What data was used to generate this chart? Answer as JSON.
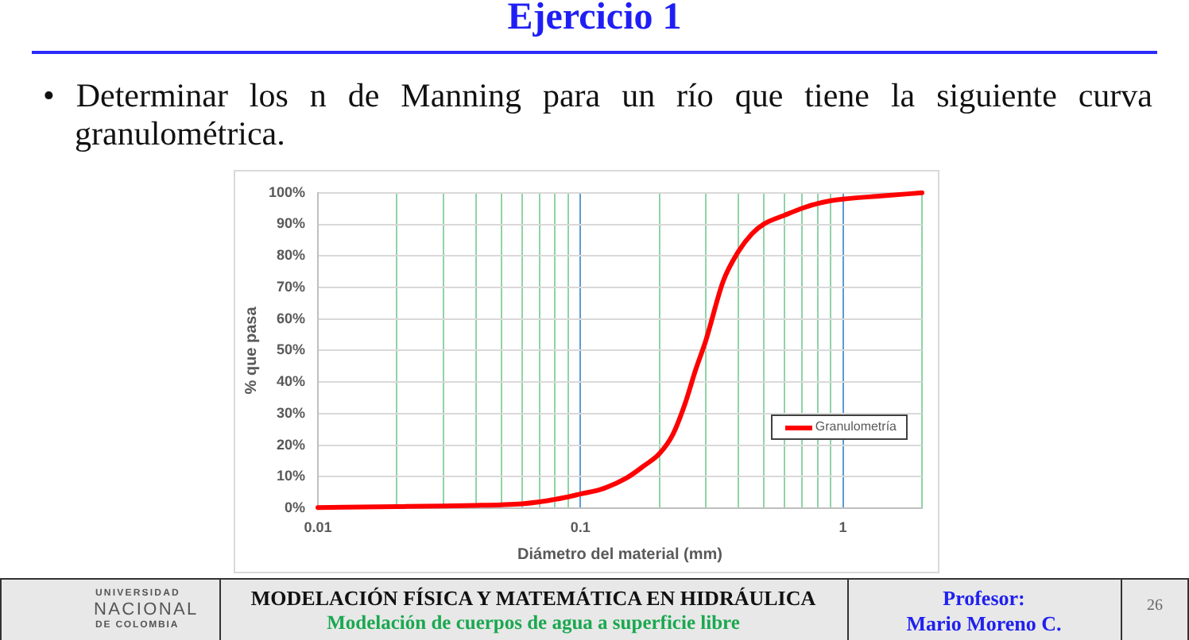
{
  "chart_data": {
    "type": "line",
    "title": "Ejercicio 1",
    "subtitle": "• Determinar los n de Manning para un río que tiene la siguiente curva granulométrica.",
    "xlabel": "Diámetro del material (mm)",
    "ylabel": "% que pasa",
    "x": [
      0.01,
      0.02,
      0.03,
      0.04,
      0.05,
      0.06,
      0.07,
      0.08,
      0.09,
      0.1,
      0.12,
      0.15,
      0.175,
      0.2,
      0.225,
      0.25,
      0.275,
      0.3,
      0.35,
      0.4,
      0.45,
      0.5,
      0.6,
      0.7,
      0.8,
      0.9,
      1,
      1.4,
      2
    ],
    "series": [
      {
        "name": "Granulometría",
        "color": "#ff0000",
        "values": [
          0.2,
          0.5,
          0.7,
          0.9,
          1.1,
          1.4,
          2,
          2.8,
          3.6,
          4.5,
          6,
          9.6,
          13.5,
          17.3,
          23.4,
          33,
          44,
          53,
          72,
          81.4,
          87,
          90.1,
          92.9,
          95.1,
          96.6,
          97.5,
          98,
          99,
          100
        ]
      }
    ],
    "xlim": [
      0.01,
      2
    ],
    "ylim": [
      0,
      100
    ],
    "xticks": [
      0.01,
      {
        "value": 0.02,
        "label": null
      },
      {
        "value": 0.03,
        "label": null
      },
      {
        "value": 0.04,
        "label": null
      },
      {
        "value": 0.05,
        "label": null
      },
      {
        "value": 0.06,
        "label": null
      },
      {
        "value": 0.07,
        "label": null
      },
      {
        "value": 0.08,
        "label": null
      },
      {
        "value": 0.09,
        "label": null
      },
      0.1,
      {
        "value": 0.2,
        "label": null
      },
      {
        "value": 0.3,
        "label": null
      },
      {
        "value": 0.4,
        "label": null
      },
      {
        "value": 0.5,
        "label": null
      },
      {
        "value": 0.6,
        "label": null
      },
      {
        "value": 0.7,
        "label": null
      },
      {
        "value": 0.8,
        "label": null
      },
      {
        "value": 0.9,
        "label": null
      },
      1,
      {
        "value": 2,
        "label": null
      }
    ],
    "yticks": [
      {
        "value": 0,
        "label": "0%"
      },
      {
        "value": 10,
        "label": "10%"
      },
      {
        "value": 20,
        "label": "20%"
      },
      {
        "value": 30,
        "label": "30%"
      },
      {
        "value": 40,
        "label": "40%"
      },
      {
        "value": 50,
        "label": "50%"
      },
      {
        "value": 60,
        "label": "60%"
      },
      {
        "value": 70,
        "label": "70%"
      },
      {
        "value": 80,
        "label": "80%"
      },
      {
        "value": 90,
        "label": "90%"
      },
      {
        "value": 100,
        "label": "100%"
      }
    ],
    "log": "x",
    "grid": true,
    "legend": "bottom right",
    "marker": "none",
    "annotations": [
      "UNIVERSIDAD",
      "NACIONAL",
      "DE COLOMBIA",
      "MODELACIÓN FÍSICA Y MATEMÁTICA EN HIDRÁULICA",
      "Modelación de cuerpos de agua a superficie libre",
      "Profesor:",
      "Mario Moreno C.",
      "26"
    ]
  }
}
